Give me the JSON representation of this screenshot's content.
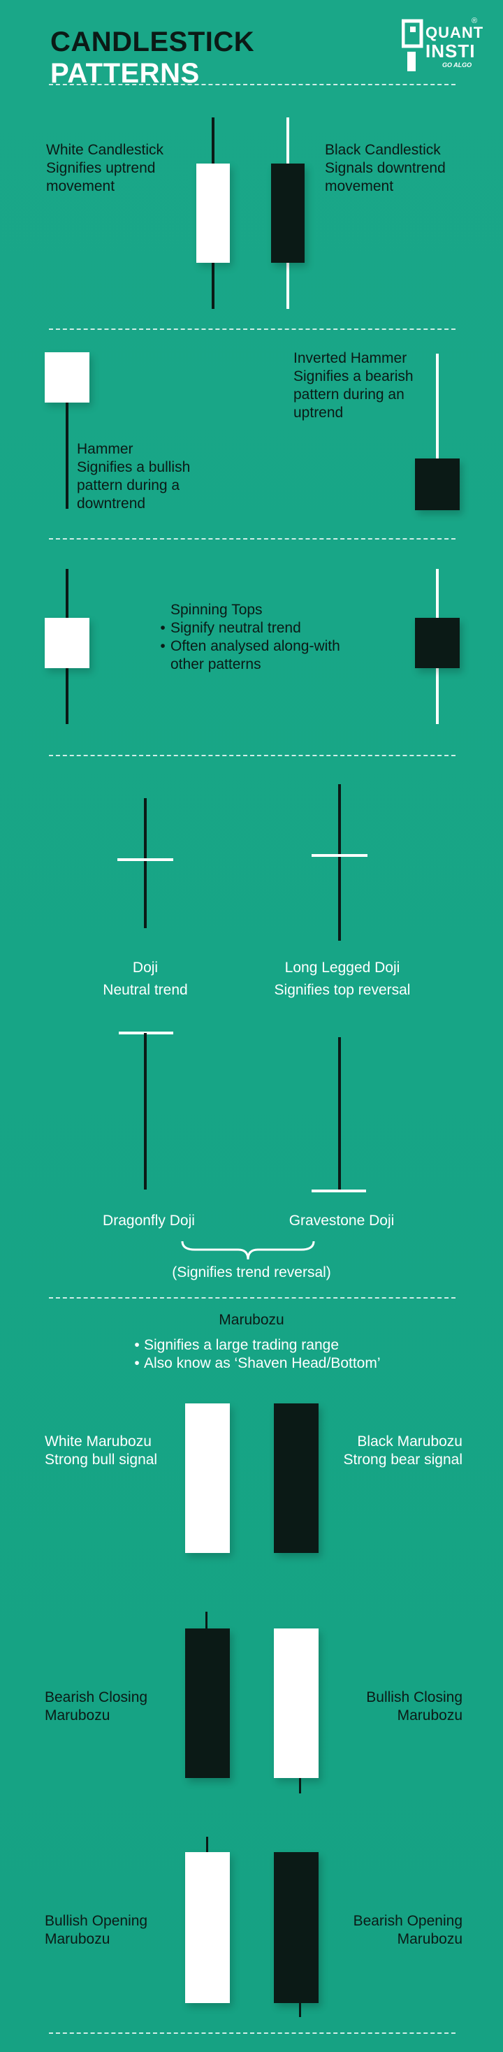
{
  "header": {
    "title_part1": "CANDLESTICK",
    "title_part2": "PATTERNS",
    "logo": {
      "wordmark_line1": "QUANT",
      "wordmark_line2": "INSTI",
      "tagline": "GO ALGO",
      "registered": "®"
    }
  },
  "colors": {
    "background": "#17a586",
    "dark": "#0b1a16",
    "light": "#ffffff"
  },
  "sections": {
    "basic": {
      "white": {
        "title": "White Candlestick",
        "desc": "Signifies uptrend movement"
      },
      "black": {
        "title": "Black Candlestick",
        "desc": "Signals downtrend movement"
      }
    },
    "hammer": {
      "hammer": {
        "title": "Hammer",
        "desc": "Signifies a bullish pattern during a downtrend"
      },
      "inverted": {
        "title": "Inverted Hammer",
        "desc": "Signifies a bearish pattern during an uptrend"
      }
    },
    "spinning": {
      "title": "Spinning Tops",
      "bullets": [
        "Signify neutral trend",
        "Often analysed along-with other patterns"
      ]
    },
    "doji": {
      "doji": {
        "title": "Doji",
        "desc": "Neutral trend"
      },
      "long_legged": {
        "title": "Long Legged Doji",
        "desc": "Signifies top reversal"
      },
      "dragonfly": {
        "title": "Dragonfly Doji"
      },
      "gravestone": {
        "title": "Gravestone Doji"
      },
      "brace_note": "(Signifies trend reversal)"
    },
    "marubozu": {
      "title": "Marubozu",
      "bullets": [
        "Signifies a large trading range",
        "Also know as ‘Shaven Head/Bottom’"
      ],
      "white": {
        "title": "White Marubozu",
        "desc": "Strong bull signal"
      },
      "black": {
        "title": "Black Marubozu",
        "desc": "Strong bear signal"
      },
      "bearish_closing": {
        "line1": "Bearish Closing",
        "line2": "Marubozu"
      },
      "bullish_closing": {
        "line1": "Bullish Closing",
        "line2": "Marubozu"
      },
      "bullish_opening": {
        "line1": "Bullish Opening",
        "line2": "Marubozu"
      },
      "bearish_opening": {
        "line1": "Bearish Opening",
        "line2": "Marubozu"
      }
    }
  }
}
